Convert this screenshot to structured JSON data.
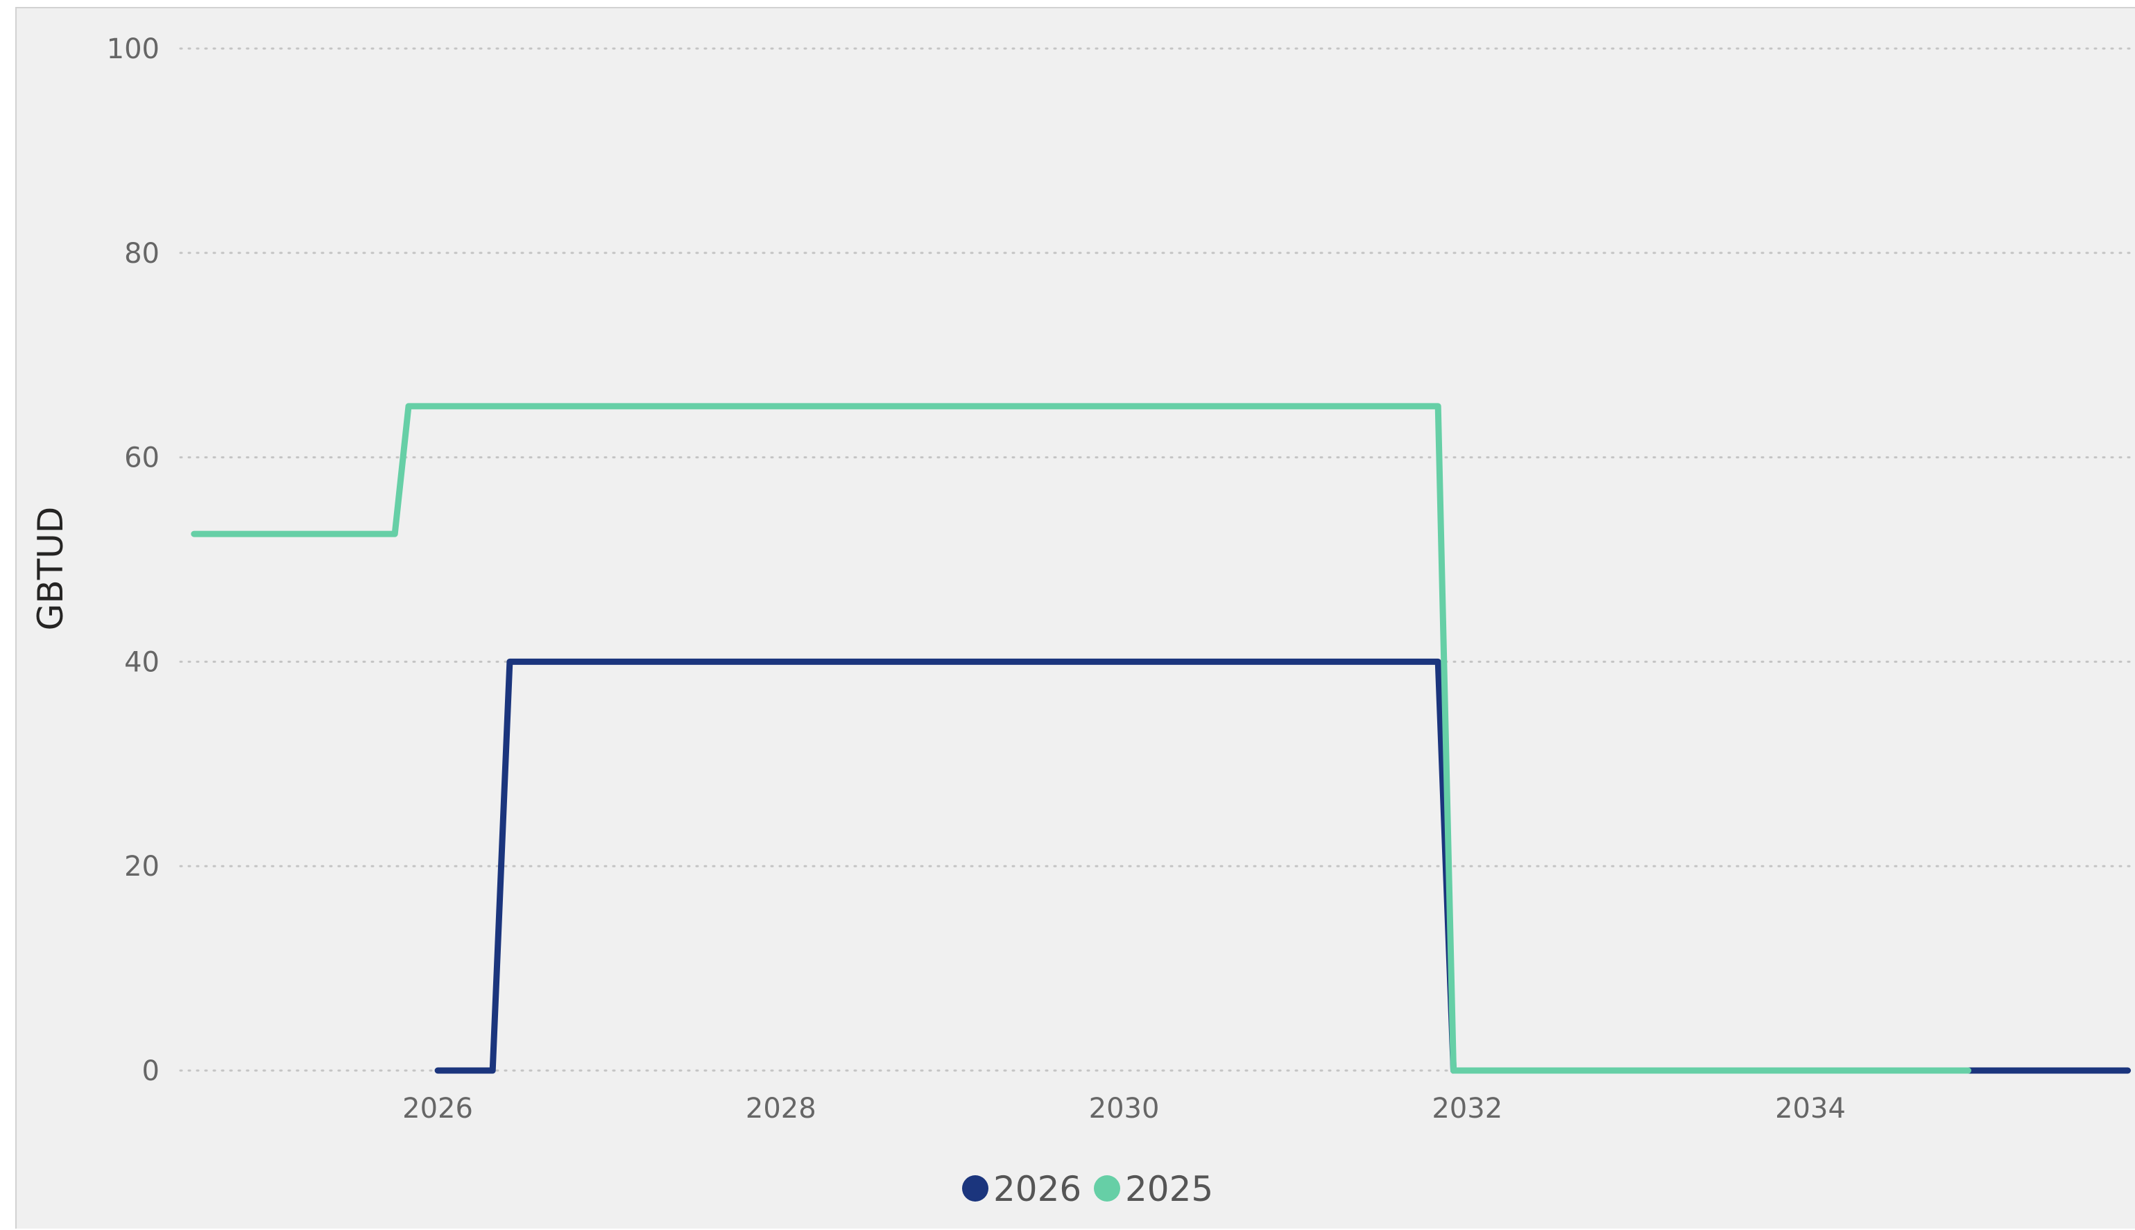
{
  "chart_data": {
    "type": "line",
    "title": "",
    "xlabel": "",
    "ylabel": "GBTUD",
    "xlim": [
      2024.5,
      2035.9
    ],
    "ylim": [
      0,
      100
    ],
    "y_ticks": [
      0,
      20,
      40,
      60,
      80,
      100
    ],
    "x_ticks": [
      2026,
      2028,
      2030,
      2032,
      2034
    ],
    "grid": "horizontal-dotted",
    "legend_position": "bottom-center",
    "line_style": "step",
    "series": [
      {
        "name": "2026",
        "color": "#1b357d",
        "points": [
          [
            2026.0,
            0
          ],
          [
            2026.32,
            0
          ],
          [
            2026.42,
            40
          ],
          [
            2031.83,
            40
          ],
          [
            2031.92,
            0
          ],
          [
            2035.85,
            0
          ]
        ]
      },
      {
        "name": "2025",
        "color": "#66cfa6",
        "points": [
          [
            2024.58,
            52.5
          ],
          [
            2025.75,
            52.5
          ],
          [
            2025.83,
            65
          ],
          [
            2031.83,
            65
          ],
          [
            2031.92,
            0
          ],
          [
            2034.92,
            0
          ]
        ]
      }
    ]
  }
}
